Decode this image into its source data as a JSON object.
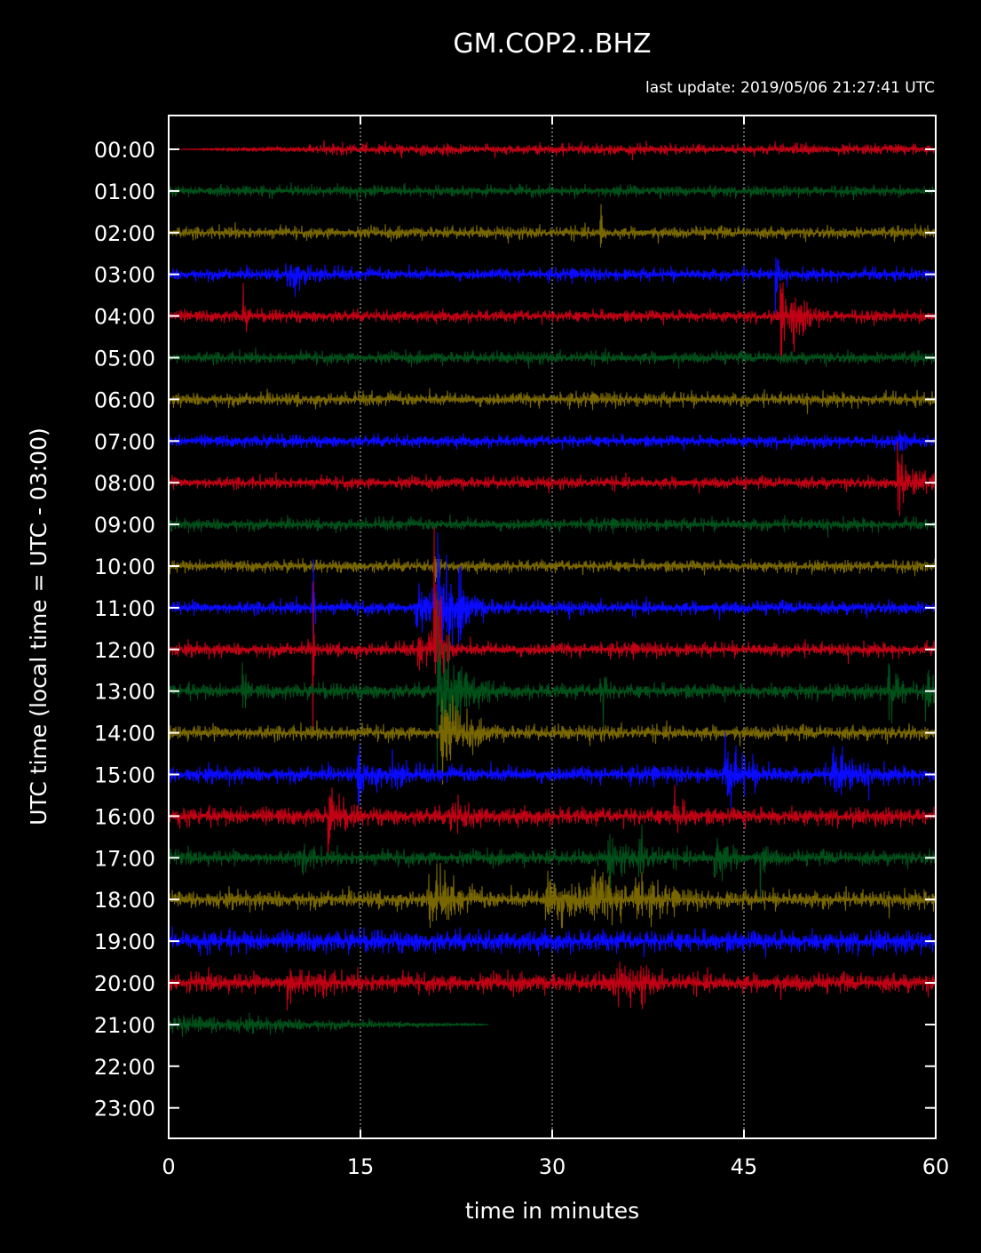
{
  "chart_data": {
    "type": "line",
    "title": "GM.COP2..BHZ",
    "subtitle": "last update: 2019/05/06 21:27:41 UTC",
    "xlabel": "time in minutes",
    "ylabel": "UTC time (local time = UTC - 03:00)",
    "xlim": [
      0,
      60
    ],
    "x_ticks": [
      "0",
      "15",
      "30",
      "45",
      "60"
    ],
    "x_tick_values": [
      0,
      15,
      30,
      45,
      60
    ],
    "y_ticks": [
      "00:00",
      "01:00",
      "02:00",
      "03:00",
      "04:00",
      "05:00",
      "06:00",
      "07:00",
      "08:00",
      "09:00",
      "10:00",
      "11:00",
      "12:00",
      "13:00",
      "14:00",
      "15:00",
      "16:00",
      "17:00",
      "18:00",
      "19:00",
      "20:00",
      "21:00",
      "22:00",
      "23:00"
    ],
    "grid": "vertical dotted at 15, 30, 45",
    "trace_colors": [
      "#c00014",
      "#00501a",
      "#786600",
      "#0a0aff"
    ],
    "traces": [
      {
        "hour": "00:00",
        "color": "#c00014",
        "start_min": 0,
        "end_min": 60,
        "noise": 8,
        "ramp_in": true
      },
      {
        "hour": "01:00",
        "color": "#00501a",
        "start_min": 0,
        "end_min": 60,
        "noise": 8
      },
      {
        "hour": "02:00",
        "color": "#786600",
        "start_min": 0,
        "end_min": 60,
        "noise": 9,
        "events": [
          {
            "t": 33.8,
            "amp": 26,
            "dur": 0.15
          }
        ]
      },
      {
        "hour": "03:00",
        "color": "#0a0aff",
        "start_min": 0,
        "end_min": 60,
        "noise": 9,
        "events": [
          {
            "t": 9.2,
            "amp": 16,
            "dur": 1.5
          },
          {
            "t": 47.5,
            "amp": 48,
            "dur": 0.15
          }
        ]
      },
      {
        "hour": "04:00",
        "color": "#c00014",
        "start_min": 0,
        "end_min": 60,
        "noise": 9,
        "events": [
          {
            "t": 5.8,
            "amp": 28,
            "dur": 0.2
          },
          {
            "t": 47.8,
            "amp": 90,
            "dur": 0.25
          },
          {
            "t": 48.6,
            "amp": 30,
            "dur": 1.0
          }
        ]
      },
      {
        "hour": "05:00",
        "color": "#00501a",
        "start_min": 0,
        "end_min": 60,
        "noise": 9
      },
      {
        "hour": "06:00",
        "color": "#786600",
        "start_min": 0,
        "end_min": 60,
        "noise": 10
      },
      {
        "hour": "07:00",
        "color": "#0a0aff",
        "start_min": 0,
        "end_min": 60,
        "noise": 9,
        "events": [
          {
            "t": 57.2,
            "amp": 10,
            "dur": 0.5
          }
        ]
      },
      {
        "hour": "08:00",
        "color": "#c00014",
        "start_min": 0,
        "end_min": 60,
        "noise": 9,
        "events": [
          {
            "t": 57.0,
            "amp": 36,
            "dur": 1.2
          }
        ]
      },
      {
        "hour": "09:00",
        "color": "#00501a",
        "start_min": 0,
        "end_min": 60,
        "noise": 9
      },
      {
        "hour": "10:00",
        "color": "#786600",
        "start_min": 0,
        "end_min": 60,
        "noise": 9,
        "events": [
          {
            "t": 20.8,
            "amp": 30,
            "dur": 0.2
          }
        ]
      },
      {
        "hour": "11:00",
        "color": "#0a0aff",
        "start_min": 0,
        "end_min": 60,
        "noise": 10,
        "events": [
          {
            "t": 11.3,
            "amp": 160,
            "dur": 0.08
          },
          {
            "t": 19.2,
            "amp": 22,
            "dur": 1.5
          },
          {
            "t": 21.0,
            "amp": 70,
            "dur": 0.8
          },
          {
            "t": 22.7,
            "amp": 22,
            "dur": 1.2
          }
        ]
      },
      {
        "hour": "12:00",
        "color": "#c00014",
        "start_min": 0,
        "end_min": 60,
        "noise": 10,
        "events": [
          {
            "t": 11.3,
            "amp": 100,
            "dur": 0.08
          },
          {
            "t": 19.5,
            "amp": 16,
            "dur": 1.5
          },
          {
            "t": 20.8,
            "amp": 120,
            "dur": 0.4
          }
        ]
      },
      {
        "hour": "13:00",
        "color": "#00501a",
        "start_min": 0,
        "end_min": 60,
        "noise": 11,
        "events": [
          {
            "t": 5.8,
            "amp": 18,
            "dur": 0.3
          },
          {
            "t": 21.0,
            "amp": 80,
            "dur": 1.5
          },
          {
            "t": 33.8,
            "amp": 35,
            "dur": 0.3
          },
          {
            "t": 56.3,
            "amp": 35,
            "dur": 0.7
          },
          {
            "t": 59.2,
            "amp": 20,
            "dur": 1.0
          }
        ]
      },
      {
        "hour": "14:00",
        "color": "#786600",
        "start_min": 0,
        "end_min": 60,
        "noise": 11,
        "events": [
          {
            "t": 21.3,
            "amp": 40,
            "dur": 1.5
          }
        ]
      },
      {
        "hour": "15:00",
        "color": "#0a0aff",
        "start_min": 0,
        "end_min": 60,
        "noise": 12,
        "events": [
          {
            "t": 14.8,
            "amp": 22,
            "dur": 1.0
          },
          {
            "t": 17.5,
            "amp": 18,
            "dur": 0.8
          },
          {
            "t": 43.5,
            "amp": 30,
            "dur": 1.5
          },
          {
            "t": 51.8,
            "amp": 30,
            "dur": 1.5
          }
        ]
      },
      {
        "hour": "16:00",
        "color": "#c00014",
        "start_min": 0,
        "end_min": 60,
        "noise": 13,
        "events": [
          {
            "t": 12.5,
            "amp": 28,
            "dur": 0.8
          },
          {
            "t": 22.0,
            "amp": 18,
            "dur": 1.0
          },
          {
            "t": 39.5,
            "amp": 20,
            "dur": 0.6
          }
        ]
      },
      {
        "hour": "17:00",
        "color": "#00501a",
        "start_min": 0,
        "end_min": 60,
        "noise": 11,
        "events": [
          {
            "t": 10.5,
            "amp": 20,
            "dur": 0.5
          },
          {
            "t": 34.3,
            "amp": 20,
            "dur": 1.2
          },
          {
            "t": 36.8,
            "amp": 18,
            "dur": 1.0
          },
          {
            "t": 42.7,
            "amp": 28,
            "dur": 0.8
          },
          {
            "t": 46.3,
            "amp": 18,
            "dur": 0.5
          }
        ]
      },
      {
        "hour": "18:00",
        "color": "#786600",
        "start_min": 0,
        "end_min": 60,
        "noise": 13,
        "events": [
          {
            "t": 20.3,
            "amp": 35,
            "dur": 1.5
          },
          {
            "t": 29.5,
            "amp": 28,
            "dur": 2.5
          },
          {
            "t": 33.0,
            "amp": 20,
            "dur": 2.0
          },
          {
            "t": 36.5,
            "amp": 18,
            "dur": 1.5
          }
        ]
      },
      {
        "hour": "19:00",
        "color": "#0a0aff",
        "start_min": 0,
        "end_min": 60,
        "noise": 16
      },
      {
        "hour": "20:00",
        "color": "#c00014",
        "start_min": 0,
        "end_min": 60,
        "noise": 14,
        "events": [
          {
            "t": 9.3,
            "amp": 22,
            "dur": 0.8
          },
          {
            "t": 12.0,
            "amp": 18,
            "dur": 0.5
          },
          {
            "t": 34.8,
            "amp": 18,
            "dur": 1.0
          },
          {
            "t": 36.7,
            "amp": 16,
            "dur": 0.7
          }
        ]
      },
      {
        "hour": "21:00",
        "color": "#00501a",
        "start_min": 0,
        "end_min": 25,
        "noise": 12,
        "ramp_out": true
      }
    ]
  }
}
